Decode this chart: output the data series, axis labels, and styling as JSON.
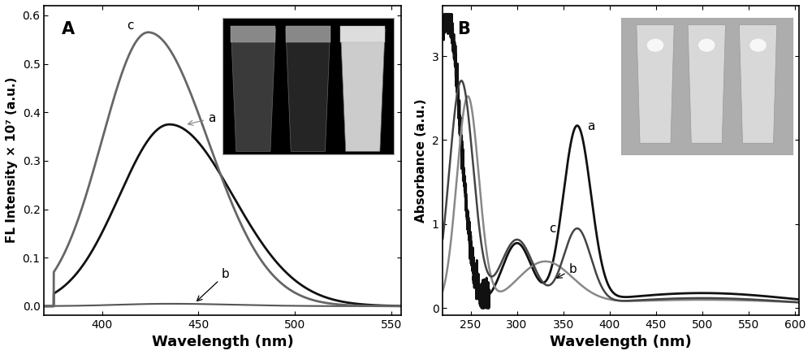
{
  "panel_A": {
    "label": "A",
    "xlabel": "Wavelength (nm)",
    "ylabel": "FL Intensity × 10⁷ (a.u.)",
    "xlim": [
      370,
      555
    ],
    "ylim": [
      -0.018,
      0.62
    ],
    "yticks": [
      0.0,
      0.1,
      0.2,
      0.3,
      0.4,
      0.5,
      0.6
    ],
    "xticks": [
      400,
      450,
      500,
      550
    ],
    "curve_a_peak": 435,
    "curve_a_height": 0.375,
    "curve_a_wl": 26,
    "curve_a_wr": 33,
    "curve_a_color": "#111111",
    "curve_b_height": 0.005,
    "curve_b_color": "#555555",
    "curve_c_peak": 424,
    "curve_c_height": 0.565,
    "curve_c_wl": 24,
    "curve_c_wr": 31,
    "curve_c_color": "#666666"
  },
  "panel_B": {
    "label": "B",
    "xlabel": "Wavelength (nm)",
    "ylabel": "Absorbance (a.u.)",
    "xlim": [
      220,
      605
    ],
    "ylim": [
      -0.08,
      3.6
    ],
    "yticks": [
      0,
      1,
      2,
      3
    ],
    "xticks": [
      250,
      300,
      350,
      400,
      450,
      500,
      550,
      600
    ],
    "curve_a_color": "#111111",
    "curve_b_color": "#888888",
    "curve_c_color": "#444444"
  },
  "bg_color": "#ffffff",
  "text_color": "#000000"
}
